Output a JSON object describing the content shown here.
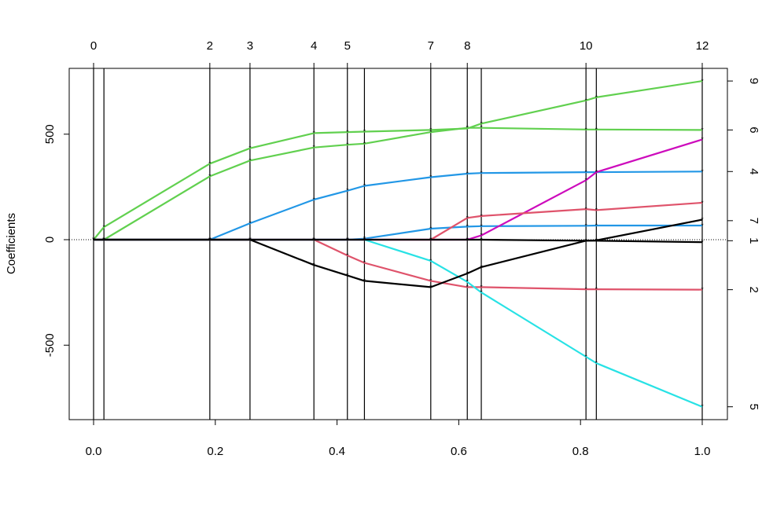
{
  "chart_data": {
    "type": "line",
    "title": "",
    "xlabel": "",
    "ylabel": "Coefficients",
    "xlim": [
      0,
      1
    ],
    "ylim": [
      -850,
      820
    ],
    "x_ticks": [
      0.0,
      0.2,
      0.4,
      0.6,
      0.8,
      1.0
    ],
    "x_tick_labels": [
      "0.0",
      "0.2",
      "0.4",
      "0.6",
      "0.8",
      "1.0"
    ],
    "y_ticks": [
      -500,
      0,
      500
    ],
    "y_tick_labels": [
      "-500",
      "0",
      "500"
    ],
    "zero_line": true,
    "step_lines": [
      0.0,
      0.017,
      0.191,
      0.257,
      0.362,
      0.417,
      0.445,
      0.554,
      0.614,
      0.637,
      0.809,
      0.826,
      1.0
    ],
    "top_axis_labels": [
      {
        "x": 0.0,
        "label": "0"
      },
      {
        "x": 0.191,
        "label": "2"
      },
      {
        "x": 0.257,
        "label": "3"
      },
      {
        "x": 0.362,
        "label": "4"
      },
      {
        "x": 0.417,
        "label": "5"
      },
      {
        "x": 0.554,
        "label": "7"
      },
      {
        "x": 0.614,
        "label": "8"
      },
      {
        "x": 0.809,
        "label": "10"
      },
      {
        "x": 1.0,
        "label": "12"
      }
    ],
    "right_axis_labels": [
      {
        "y": 752,
        "label": "9"
      },
      {
        "y": 520,
        "label": "6"
      },
      {
        "y": 323,
        "label": "4"
      },
      {
        "y": 90,
        "label": "7"
      },
      {
        "y": -5,
        "label": "1"
      },
      {
        "y": -237,
        "label": "2"
      },
      {
        "y": -792,
        "label": "5"
      }
    ],
    "colors": {
      "green": "#61D04F",
      "blue": "#2297E6",
      "red": "#DF536B",
      "magenta": "#CD0BBC",
      "cyan": "#28E2E5",
      "black": "#000000"
    },
    "series": [
      {
        "color": "green",
        "x": [
          0,
          0.017,
          0.191,
          0.257,
          0.362,
          0.417,
          0.445,
          0.554,
          0.614,
          0.637,
          0.809,
          0.826,
          1.0
        ],
        "y": [
          0,
          60,
          360,
          433,
          505,
          510,
          512,
          520,
          527,
          550,
          660,
          675,
          752
        ]
      },
      {
        "color": "green",
        "x": [
          0,
          0.017,
          0.191,
          0.257,
          0.362,
          0.417,
          0.445,
          0.554,
          0.614,
          0.637,
          0.809,
          0.826,
          1.0
        ],
        "y": [
          0,
          0,
          300,
          375,
          437,
          450,
          455,
          510,
          530,
          530,
          522,
          522,
          520
        ]
      },
      {
        "color": "blue",
        "x": [
          0,
          0.017,
          0.191,
          0.257,
          0.362,
          0.417,
          0.445,
          0.554,
          0.614,
          0.637,
          0.809,
          0.826,
          1.0
        ],
        "y": [
          0,
          0,
          0,
          78,
          190,
          232,
          255,
          296,
          313,
          316,
          320,
          320,
          323
        ]
      },
      {
        "color": "blue",
        "x": [
          0,
          0.017,
          0.191,
          0.257,
          0.362,
          0.417,
          0.445,
          0.554,
          0.614,
          0.637,
          0.809,
          0.826,
          1.0
        ],
        "y": [
          0,
          0,
          0,
          0,
          0,
          0,
          5,
          52,
          62,
          64,
          66,
          67,
          67
        ]
      },
      {
        "color": "magenta",
        "x": [
          0,
          0.017,
          0.191,
          0.257,
          0.362,
          0.417,
          0.445,
          0.554,
          0.614,
          0.637,
          0.809,
          0.826,
          1.0
        ],
        "y": [
          0,
          0,
          0,
          0,
          0,
          0,
          0,
          0,
          0,
          20,
          282,
          320,
          475
        ]
      },
      {
        "color": "red",
        "x": [
          0,
          0.017,
          0.191,
          0.257,
          0.362,
          0.417,
          0.445,
          0.554,
          0.614,
          0.637,
          0.809,
          0.826,
          1.0
        ],
        "y": [
          0,
          0,
          0,
          0,
          0,
          0,
          0,
          0,
          103,
          112,
          145,
          140,
          175
        ]
      },
      {
        "color": "red",
        "x": [
          0,
          0.017,
          0.191,
          0.257,
          0.362,
          0.417,
          0.445,
          0.554,
          0.614,
          0.637,
          0.809,
          0.826,
          1.0
        ],
        "y": [
          0,
          0,
          0,
          0,
          0,
          -75,
          -110,
          -195,
          -225,
          -225,
          -235,
          -235,
          -237
        ]
      },
      {
        "color": "cyan",
        "x": [
          0,
          0.017,
          0.191,
          0.257,
          0.362,
          0.417,
          0.445,
          0.554,
          0.614,
          0.637,
          0.809,
          0.826,
          1.0
        ],
        "y": [
          0,
          0,
          0,
          0,
          0,
          0,
          0,
          -100,
          -200,
          -250,
          -555,
          -585,
          -792
        ]
      },
      {
        "color": "black",
        "x": [
          0,
          0.017,
          0.191,
          0.257,
          0.362,
          0.417,
          0.445,
          0.554,
          0.614,
          0.637,
          0.809,
          0.826,
          1.0
        ],
        "y": [
          0,
          0,
          0,
          0,
          -120,
          -170,
          -195,
          -225,
          -160,
          -130,
          -5,
          -3,
          95
        ]
      },
      {
        "color": "black",
        "x": [
          0,
          0.017,
          0.191,
          0.257,
          0.362,
          0.417,
          0.445,
          0.554,
          0.614,
          0.637,
          0.809,
          0.826,
          1.0
        ],
        "y": [
          0,
          0,
          0,
          0,
          0,
          0,
          0,
          0,
          0,
          0,
          -5,
          -5,
          -12
        ]
      }
    ]
  }
}
